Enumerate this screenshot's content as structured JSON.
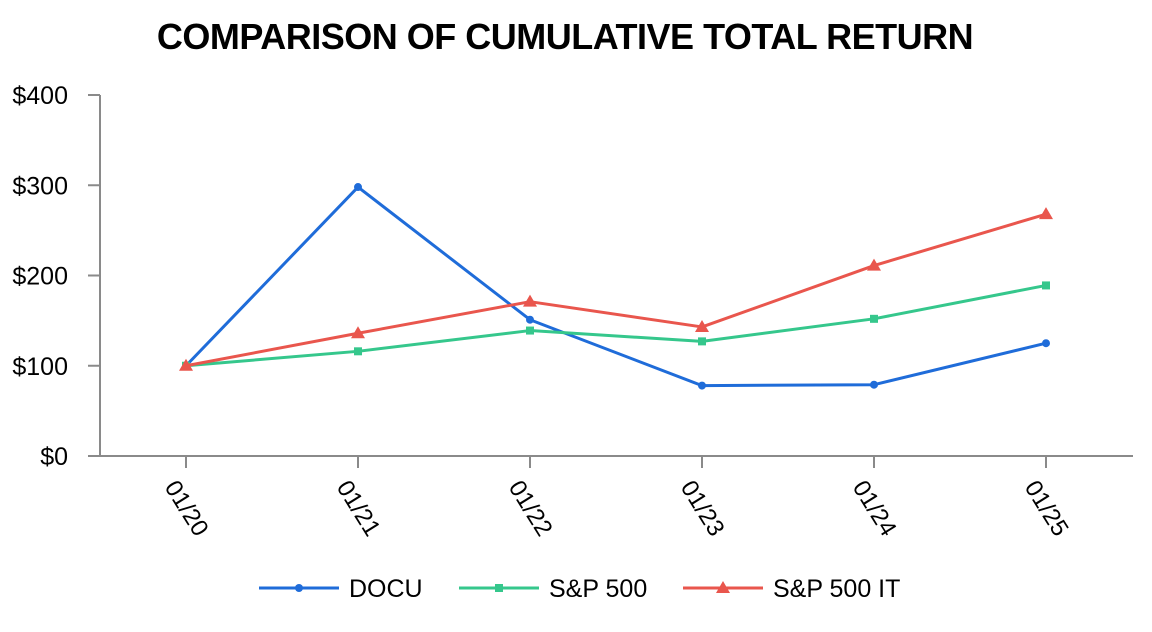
{
  "title": "COMPARISON OF CUMULATIVE TOTAL RETURN",
  "chart_data": {
    "type": "line",
    "title": "COMPARISON OF CUMULATIVE TOTAL RETURN",
    "categories": [
      "01/20",
      "01/21",
      "01/22",
      "01/23",
      "01/24",
      "01/25"
    ],
    "series": [
      {
        "name": "DOCU",
        "color": "#1F6CD9",
        "marker": "circle",
        "values": [
          100,
          298,
          151,
          78,
          79,
          125
        ]
      },
      {
        "name": "S&P 500",
        "color": "#35C78C",
        "marker": "square",
        "values": [
          100,
          116,
          139,
          127,
          152,
          189
        ]
      },
      {
        "name": "S&P 500 IT",
        "color": "#E9564D",
        "marker": "triangle",
        "values": [
          100,
          136,
          171,
          143,
          211,
          268
        ]
      }
    ],
    "xlabel": "",
    "ylabel": "",
    "ytick_labels": [
      "$0",
      "$100",
      "$200",
      "$300",
      "$400"
    ],
    "ytick_values": [
      0,
      100,
      200,
      300,
      400
    ],
    "ylim": [
      0,
      400
    ],
    "grid": false,
    "legend_position": "bottom",
    "axis_color": "#8A8A8A",
    "text_color": "#000000"
  }
}
